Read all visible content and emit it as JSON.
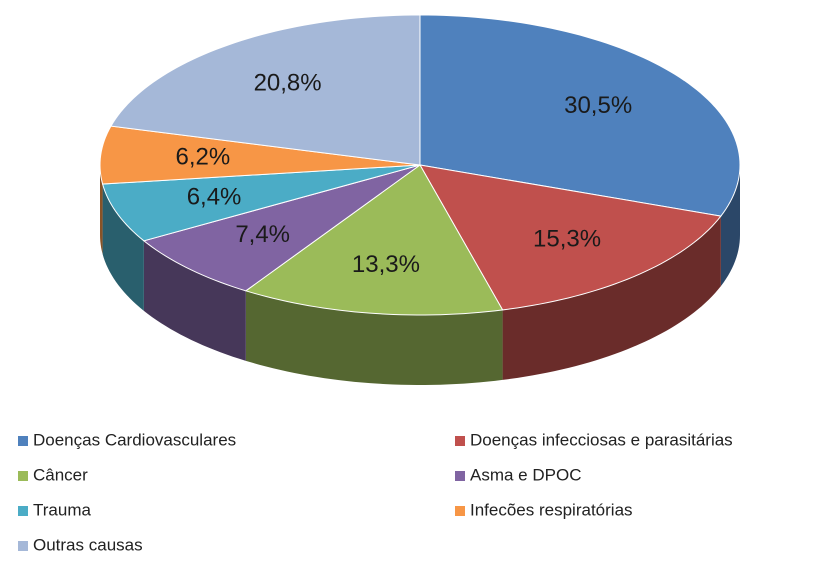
{
  "chart_data": {
    "type": "pie",
    "categories": [
      "Doenças Cardiovasculares",
      "Doenças infecciosas e parasitárias",
      "Câncer",
      "Asma e DPOC",
      "Trauma",
      "Infecões respiratórias",
      "Outras causas"
    ],
    "values": [
      30.5,
      15.3,
      13.3,
      7.4,
      6.4,
      6.2,
      20.8
    ],
    "value_labels": [
      "30,5%",
      "15,3%",
      "13,3%",
      "7,4%",
      "6,4%",
      "6,2%",
      "20,8%"
    ],
    "colors": [
      "#4f81bd",
      "#c0504d",
      "#9bbb59",
      "#8064a2",
      "#4bacc6",
      "#f79646",
      "#a5b8d8"
    ],
    "legend": "bottom"
  }
}
